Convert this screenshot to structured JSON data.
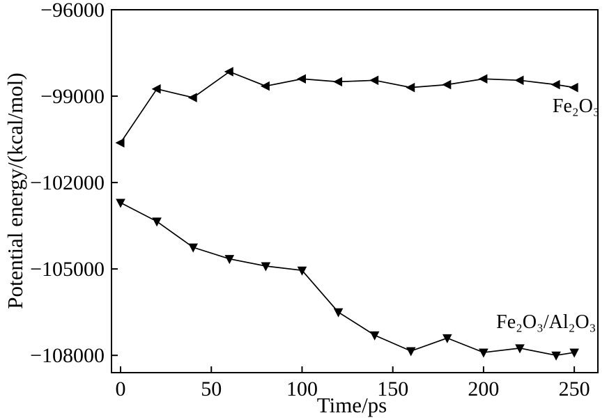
{
  "figure": {
    "background": "#ffffff",
    "axis_color": "#000000"
  },
  "chart_data": {
    "type": "line",
    "title": "",
    "xlabel": "Time/ps",
    "ylabel": "Potential energy/(kcal/mol)",
    "xlim": [
      -5,
      263
    ],
    "ylim": [
      -108600,
      -96000
    ],
    "grid": false,
    "legend_position": "inline-annotations",
    "xticks": {
      "values": [
        0,
        50,
        100,
        150,
        200,
        250
      ],
      "labels": [
        "0",
        "50",
        "100",
        "150",
        "200",
        "250"
      ]
    },
    "yticks": {
      "values": [
        -96000,
        -99000,
        -102000,
        -105000,
        -108000
      ],
      "labels": [
        "−96000",
        "−99000",
        "−102000",
        "−105000",
        "−108000"
      ]
    },
    "x": [
      0,
      20,
      40,
      60,
      80,
      100,
      120,
      140,
      160,
      180,
      200,
      220,
      240,
      250
    ],
    "series": [
      {
        "name": "Fe₂O₃",
        "marker": "triangle-left",
        "color": "#000000",
        "values": [
          -100620,
          -98750,
          -99050,
          -98150,
          -98650,
          -98400,
          -98500,
          -98450,
          -98700,
          -98600,
          -98400,
          -98450,
          -98600,
          -98700
        ]
      },
      {
        "name": "Fe₂O₃/Al₂O₃",
        "marker": "triangle-down",
        "color": "#000000",
        "values": [
          -102700,
          -103350,
          -104250,
          -104650,
          -104900,
          -105050,
          -106500,
          -107300,
          -107850,
          -107400,
          -107900,
          -107750,
          -108000,
          -107900
        ]
      }
    ],
    "annotations": [
      {
        "text": "Fe₂O₃",
        "x": 238,
        "y": -99550,
        "anchor": "start"
      },
      {
        "text": "Fe₂O₃/Al₂O₃",
        "x": 207,
        "y": -107050,
        "anchor": "start"
      }
    ]
  }
}
